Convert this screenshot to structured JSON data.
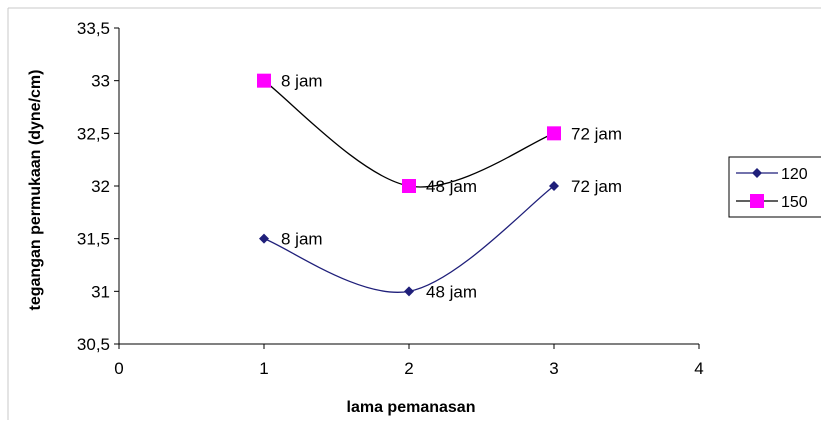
{
  "chart_data": {
    "type": "line",
    "title": "",
    "xlabel": "lama pemanasan",
    "ylabel": "tegangan permukaan (dyne/cm)",
    "xlim": [
      0,
      4
    ],
    "ylim": [
      30.5,
      33.5
    ],
    "x_ticks": [
      0,
      1,
      2,
      3,
      4
    ],
    "x_tick_labels": [
      "0",
      "1",
      "2",
      "3",
      "4"
    ],
    "y_ticks": [
      30.5,
      31,
      31.5,
      32,
      32.5,
      33,
      33.5
    ],
    "y_tick_labels": [
      "30,5",
      "31",
      "31,5",
      "32",
      "32,5",
      "33",
      "33,5"
    ],
    "grid": false,
    "legend_position": "right",
    "series": [
      {
        "name": "120",
        "color": "#1f1f7a",
        "marker": "diamond",
        "marker_color": "#1f1f7a",
        "smooth": true,
        "x": [
          1,
          2,
          3
        ],
        "y": [
          31.5,
          31,
          32
        ],
        "labels": [
          "8 jam",
          "48 jam",
          "72 jam"
        ]
      },
      {
        "name": "150",
        "color": "#000000",
        "marker": "square",
        "marker_color": "#ff00ff",
        "smooth": true,
        "x": [
          1,
          2,
          3
        ],
        "y": [
          33,
          32,
          32.5
        ],
        "labels": [
          "8 jam",
          "48 jam",
          "72 jam"
        ]
      }
    ]
  }
}
